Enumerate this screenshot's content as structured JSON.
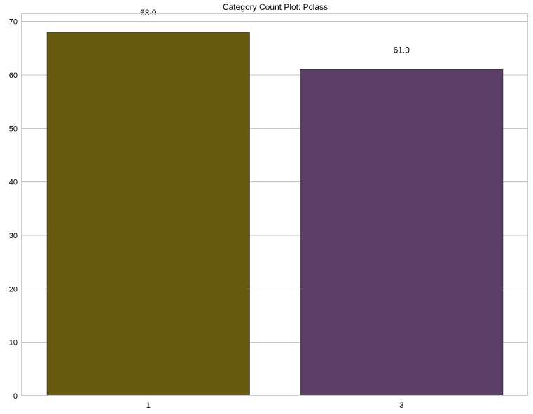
{
  "chart_data": {
    "type": "bar",
    "title": "Category Count Plot: Pclass",
    "categories": [
      "1",
      "3"
    ],
    "values": [
      68.0,
      61.0
    ],
    "value_labels": [
      "68.0",
      "61.0"
    ],
    "bar_colors": [
      "#665a11",
      "#5b3e66"
    ],
    "xlabel": "",
    "ylabel": "",
    "ylim": [
      0,
      71.4
    ],
    "yticks": [
      0,
      10,
      20,
      30,
      40,
      50,
      60,
      70
    ],
    "grid": "horizontal",
    "legend": "none"
  }
}
